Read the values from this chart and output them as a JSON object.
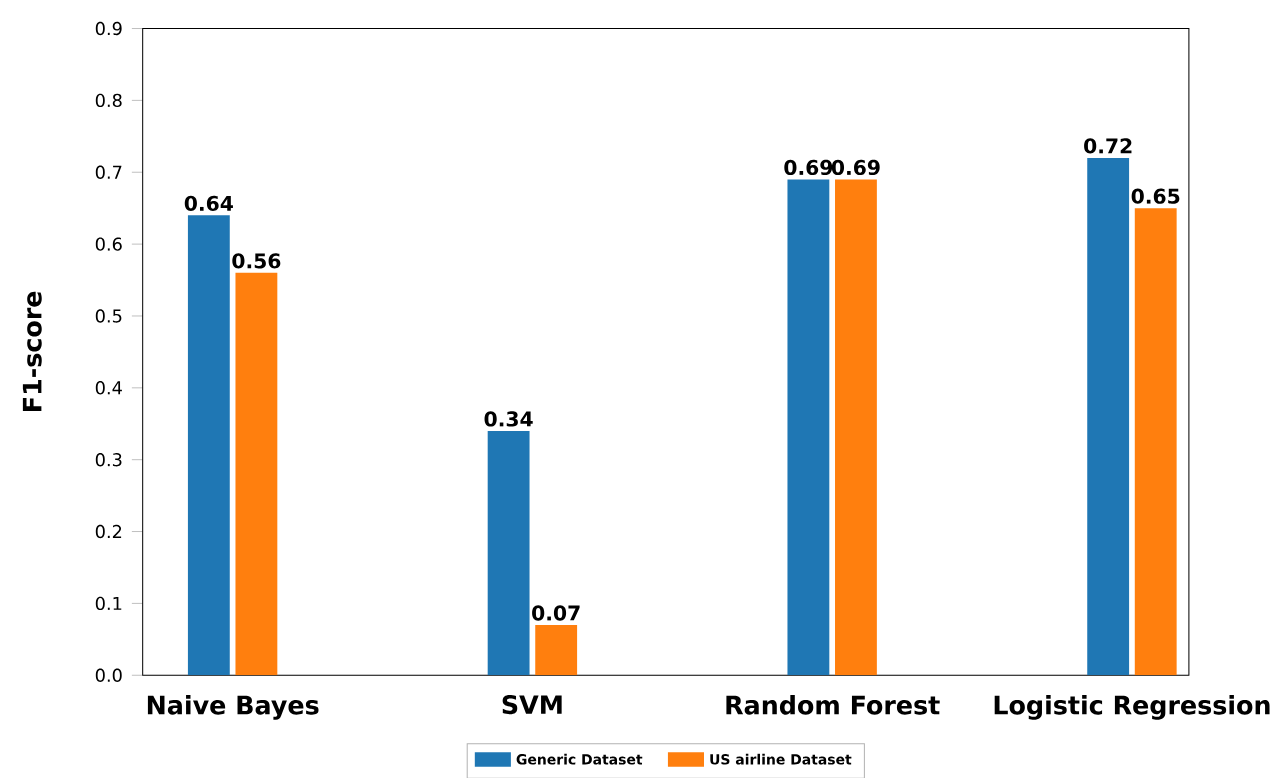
{
  "chart_data": {
    "type": "bar",
    "ylabel": "F1-score",
    "categories": [
      "Naive Bayes",
      "SVM",
      "Random Forest",
      "Logistic Regression"
    ],
    "series": [
      {
        "name": "Generic Dataset",
        "color": "#1f77b4",
        "values": [
          0.64,
          0.34,
          0.69,
          0.72
        ],
        "value_labels": [
          "0.64",
          "0.34",
          "0.69",
          "0.72"
        ]
      },
      {
        "name": "US airline Dataset",
        "color": "#ff7f0e",
        "values": [
          0.56,
          0.07,
          0.69,
          0.65
        ],
        "value_labels": [
          "0.56",
          "0.07",
          "0.69",
          "0.65"
        ]
      }
    ],
    "ylim": [
      0,
      0.9
    ],
    "yticks": [
      {
        "value": 0,
        "label": "0.0"
      },
      0.1,
      0.2,
      0.3,
      0.4,
      0.5,
      0.6,
      0.7,
      0.8,
      0.9
    ],
    "legend": "bottom"
  }
}
